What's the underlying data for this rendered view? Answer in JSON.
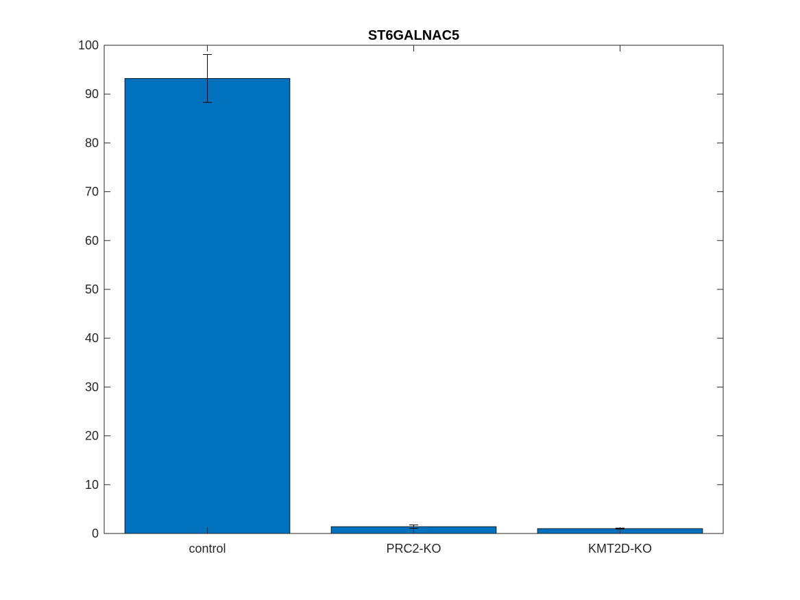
{
  "chart_data": {
    "type": "bar",
    "title": "ST6GALNAC5",
    "xlabel": "",
    "ylabel": "",
    "categories": [
      "control",
      "PRC2-KO",
      "KMT2D-KO"
    ],
    "values": [
      93.2,
      1.4,
      1.0
    ],
    "errors": [
      4.9,
      0.35,
      0.1
    ],
    "ylim": [
      0,
      100
    ],
    "yticks": [
      0,
      10,
      20,
      30,
      40,
      50,
      60,
      70,
      80,
      90,
      100
    ],
    "grid": false,
    "bar_color": "#0072BD",
    "edge_color": "#000000"
  }
}
